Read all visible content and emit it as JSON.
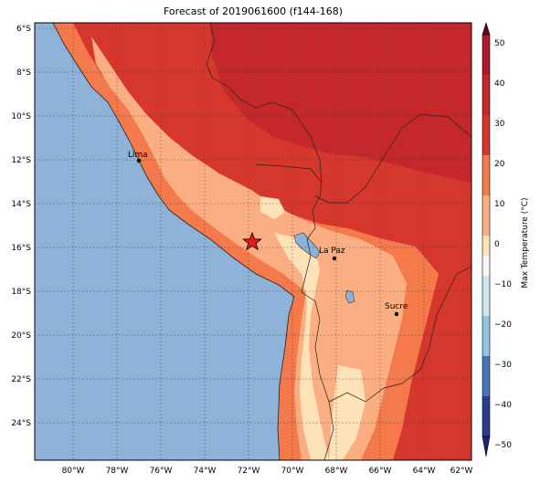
{
  "title": "Forecast of 2019061600 (f144-168)",
  "map": {
    "lat_ticks": [
      "6°S",
      "8°S",
      "10°S",
      "12°S",
      "14°S",
      "16°S",
      "18°S",
      "20°S",
      "22°S",
      "24°S"
    ],
    "lon_ticks": [
      "80°W",
      "78°W",
      "76°W",
      "74°W",
      "72°W",
      "70°W",
      "68°W",
      "66°W",
      "64°W",
      "62°W"
    ],
    "ocean_color": "#8fb3d8",
    "cities": [
      {
        "name": "Lima",
        "lon": -77.0,
        "lat": -12.05
      },
      {
        "name": "La Paz",
        "lon": -68.1,
        "lat": -16.5
      },
      {
        "name": "Sucre",
        "lon": -65.25,
        "lat": -19.05
      }
    ],
    "marker": {
      "icon": "red-star-icon",
      "lon": -71.9,
      "lat": -15.8,
      "color": "#e8191b"
    }
  },
  "colorbar": {
    "label": "Max Temperature (°C)",
    "ticks": [
      "50",
      "40",
      "30",
      "20",
      "10",
      "0",
      "−10",
      "−20",
      "−30",
      "−40",
      "−50"
    ],
    "colors": [
      "#67001f",
      "#b2182b",
      "#d6372c",
      "#f4794b",
      "#fbae82",
      "#fee3b8",
      "#f7f7f7",
      "#d1e5f0",
      "#92c5de",
      "#6ea6cd",
      "#4a74b4",
      "#2a3d8f",
      "#18237a"
    ]
  }
}
